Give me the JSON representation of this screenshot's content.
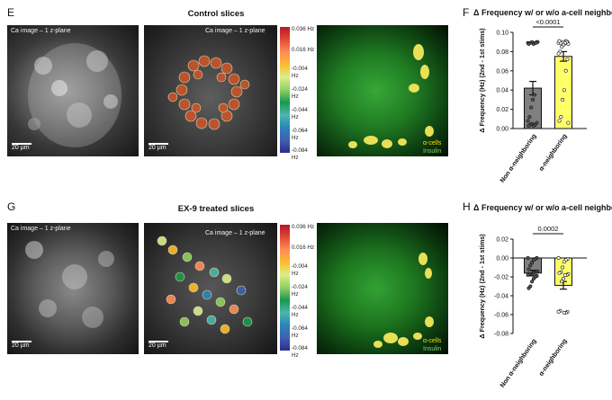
{
  "panels": {
    "E": {
      "label": "E",
      "title": "Control slices",
      "ca_caption": "Ca image – 1 z-plane",
      "overlay_caption": "Ca image – 1 z-plane",
      "scale": "20 µm",
      "legend_alpha": "α-cells",
      "legend_insulin": "Insulin",
      "colorbar": {
        "top": "0.036 Hz",
        "t2": "0.016 Hz",
        "v3": "-0.004",
        "v4": "-0.024",
        "v5": "-0.044",
        "v6": "-0.064",
        "v7": "-0.084",
        "unit": "Hz"
      }
    },
    "G": {
      "label": "G",
      "title": "EX-9 treated slices",
      "ca_caption": "Ca image – 1 z-plane",
      "overlay_caption": "Ca image – 1 z-plane",
      "scale": "20 µm",
      "legend_alpha": "α-cells",
      "legend_insulin": "Insulin",
      "colorbar": {
        "top": "0.036 Hz",
        "t2": "0.016 Hz",
        "v3": "-0.004",
        "v4": "-0.024",
        "v5": "-0.044",
        "v6": "-0.064",
        "v7": "-0.084",
        "unit": "Hz"
      }
    },
    "F": {
      "label": "F",
      "title": "Δ Frequency w/ or w/o a-cell neighbors"
    },
    "H": {
      "label": "H",
      "title": "Δ Frequency w/ or w/o a-cell neighbors"
    }
  },
  "chart_data": [
    {
      "panel": "F",
      "type": "bar",
      "ylabel": "Δ Frequency (Hz) (2nd - 1st stims)",
      "categories": [
        "Non α-neighboring",
        "α-neighboring"
      ],
      "values": [
        0.042,
        0.075
      ],
      "errors": [
        0.007,
        0.005
      ],
      "colors": [
        "#7f7f7f",
        "#ffff66"
      ],
      "ylim": [
        0.0,
        0.1
      ],
      "yticks": [
        "0.00",
        "0.02",
        "0.04",
        "0.06",
        "0.08",
        "0.10"
      ],
      "significance": "<0.0001",
      "points": [
        [
          0.089,
          0.09,
          0.089,
          0.088,
          0.09,
          0.089,
          0.088,
          0.09,
          0.089,
          0.035,
          0.03,
          0.022,
          0.012,
          0.008,
          0.006,
          0.004,
          0.003,
          0.005,
          0.004,
          0.003
        ],
        [
          0.089,
          0.09,
          0.091,
          0.088,
          0.09,
          0.089,
          0.091,
          0.088,
          0.09,
          0.089,
          0.087,
          0.085,
          0.08,
          0.078,
          0.072,
          0.06,
          0.04,
          0.03,
          0.012,
          0.008,
          0.006
        ]
      ]
    },
    {
      "panel": "H",
      "type": "bar",
      "ylabel": "Δ Frequency (Hz) (2nd - 1st stims)",
      "categories": [
        "Non α-neighboring",
        "α-neighboring"
      ],
      "values": [
        -0.016,
        -0.029
      ],
      "errors": [
        0.003,
        0.004
      ],
      "colors": [
        "#7f7f7f",
        "#ffff66"
      ],
      "ylim": [
        -0.08,
        0.02
      ],
      "yticks": [
        "-0.08",
        "-0.06",
        "-0.04",
        "-0.02",
        "0.00",
        "0.02"
      ],
      "significance": "0.0002",
      "points": [
        [
          0.0,
          0.0,
          -0.001,
          -0.002,
          -0.005,
          -0.008,
          -0.012,
          -0.014,
          -0.015,
          -0.016,
          -0.016,
          -0.017,
          -0.017,
          -0.018,
          -0.019,
          -0.02,
          -0.022,
          -0.025,
          -0.03,
          -0.032
        ],
        [
          0.0,
          -0.001,
          -0.002,
          -0.004,
          -0.01,
          -0.015,
          -0.016,
          -0.017,
          -0.018,
          -0.018,
          -0.022,
          -0.025,
          -0.056,
          -0.057,
          -0.057,
          -0.058,
          -0.058
        ]
      ]
    }
  ]
}
